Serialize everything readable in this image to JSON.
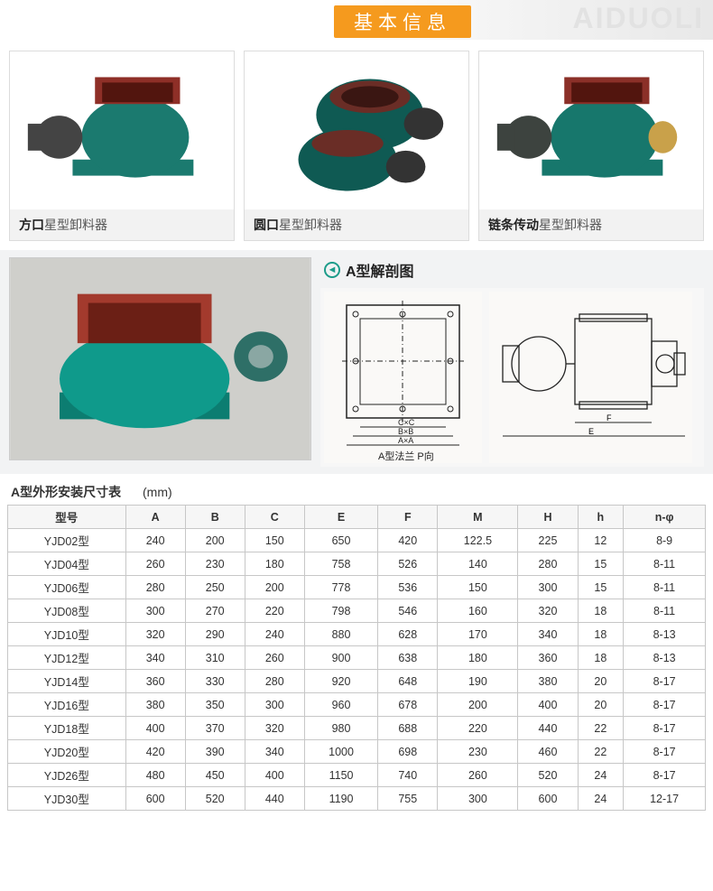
{
  "header": {
    "badge": "基本信息",
    "brand_overlay": "AIDUOLI"
  },
  "cards": [
    {
      "caption_bold": "方口",
      "caption_rest": "星型卸料器",
      "body_color": "#1b7a6f",
      "flange_color": "#8e2f27",
      "motor_color": "#444"
    },
    {
      "caption_bold": "圆口",
      "caption_rest": "星型卸料器",
      "body_color": "#0f5a53",
      "flange_color": "#6a2d26",
      "motor_color": "#333"
    },
    {
      "caption_bold": "链条传动",
      "caption_rest": "星型卸料器",
      "body_color": "#17776c",
      "flange_color": "#8b3028",
      "motor_color": "#3d433f"
    }
  ],
  "mid_section": {
    "title": "A型解剖图",
    "photo_body_color": "#0f9a8b",
    "photo_flange_color": "#a33a2d",
    "drawing_caption_left": "A型法兰  P向"
  },
  "table": {
    "title": "A型外形安装尺寸表",
    "unit": "(mm)",
    "columns": [
      "型号",
      "A",
      "B",
      "C",
      "E",
      "F",
      "M",
      "H",
      "h",
      "n-φ"
    ],
    "rows": [
      [
        "YJD02型",
        240,
        200,
        150,
        650,
        420,
        "122.5",
        225,
        12,
        "8-9"
      ],
      [
        "YJD04型",
        260,
        230,
        180,
        758,
        526,
        140,
        280,
        15,
        "8-11"
      ],
      [
        "YJD06型",
        280,
        250,
        200,
        778,
        536,
        150,
        300,
        15,
        "8-11"
      ],
      [
        "YJD08型",
        300,
        270,
        220,
        798,
        546,
        160,
        320,
        18,
        "8-11"
      ],
      [
        "YJD10型",
        320,
        290,
        240,
        880,
        628,
        170,
        340,
        18,
        "8-13"
      ],
      [
        "YJD12型",
        340,
        310,
        260,
        900,
        638,
        180,
        360,
        18,
        "8-13"
      ],
      [
        "YJD14型",
        360,
        330,
        280,
        920,
        648,
        190,
        380,
        20,
        "8-17"
      ],
      [
        "YJD16型",
        380,
        350,
        300,
        960,
        678,
        200,
        400,
        20,
        "8-17"
      ],
      [
        "YJD18型",
        400,
        370,
        320,
        980,
        688,
        220,
        440,
        22,
        "8-17"
      ],
      [
        "YJD20型",
        420,
        390,
        340,
        1000,
        698,
        230,
        460,
        22,
        "8-17"
      ],
      [
        "YJD26型",
        480,
        450,
        400,
        1150,
        740,
        260,
        520,
        24,
        "8-17"
      ],
      [
        "YJD30型",
        600,
        520,
        440,
        1190,
        755,
        300,
        600,
        24,
        "12-17"
      ]
    ]
  }
}
